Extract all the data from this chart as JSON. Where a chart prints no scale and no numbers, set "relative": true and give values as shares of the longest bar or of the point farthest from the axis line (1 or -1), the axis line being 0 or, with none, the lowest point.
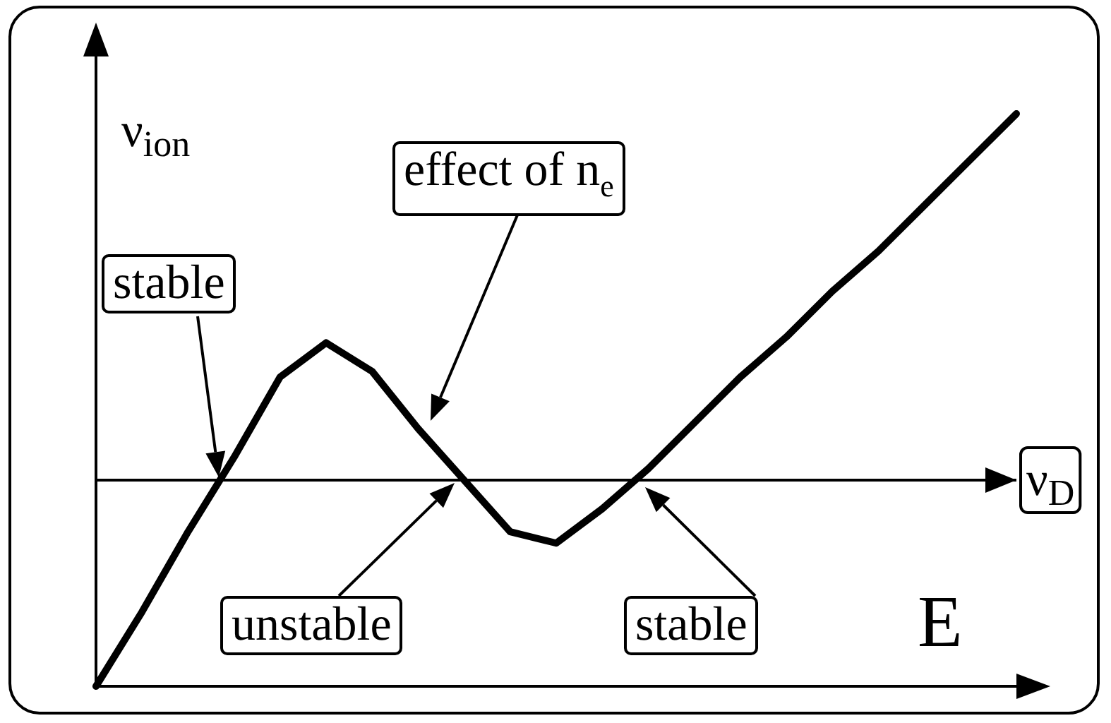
{
  "chart_data": {
    "type": "line",
    "relative": true,
    "xlabel": "E",
    "ylabel": "ν$_{ion}$",
    "categories": [
      null,
      null,
      null,
      null,
      null,
      null,
      null,
      null,
      null,
      null,
      null,
      null,
      null,
      null,
      null,
      null,
      null,
      null,
      null,
      null,
      null
    ],
    "series": [
      {
        "color": "#000000",
        "values": [
          0,
          0.13,
          0.27,
          0.4,
          0.54,
          0.6,
          0.55,
          0.45,
          0.36,
          0.27,
          0.25,
          0.31,
          0.38,
          0.46,
          0.54,
          0.61,
          0.69,
          0.76,
          0.84,
          0.92,
          1
        ]
      }
    ],
    "ref_lines": [
      {
        "axis": "y",
        "value": 0.36,
        "label": "ν$_{D}$",
        "color": "#000000",
        "line_style": "solid"
      }
    ],
    "annotations": [
      "stable",
      "effect of n$_{e}$",
      "unstable",
      "stable"
    ],
    "grid": false,
    "marker": "none",
    "line_style": "solid"
  }
}
